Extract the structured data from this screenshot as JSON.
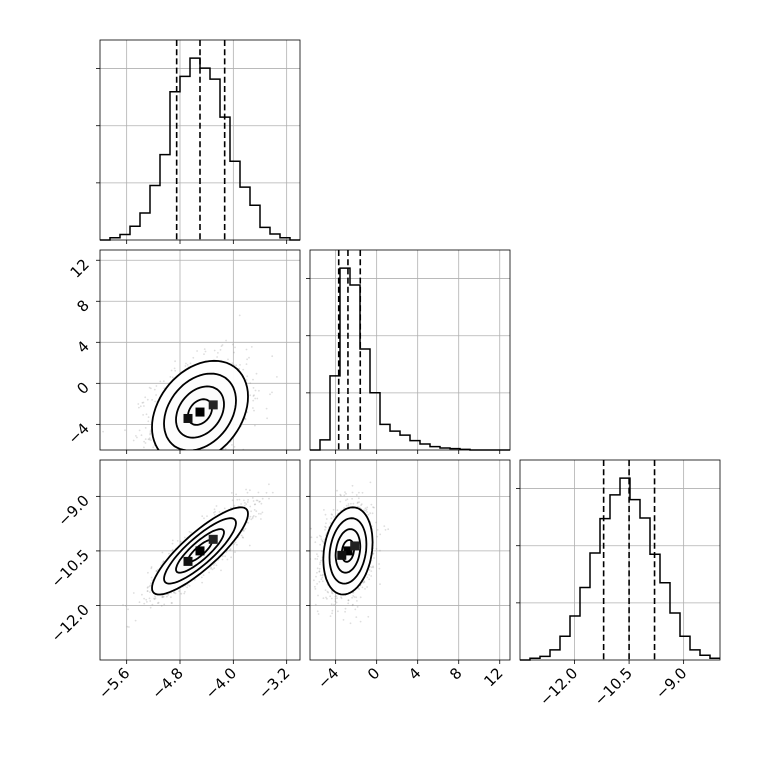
{
  "chart_data": {
    "type": "corner",
    "params": [
      {
        "ticks": [
          -5.6,
          -4.8,
          -4.0,
          -3.2
        ],
        "tick_labels": [
          "−5.6",
          "−4.8",
          "−4.0",
          "−3.2"
        ],
        "range": [
          -6.0,
          -3.0
        ]
      },
      {
        "ticks": [
          -4,
          0,
          4,
          8,
          12
        ],
        "tick_labels": [
          "−4",
          "0",
          "4",
          "8",
          "12"
        ],
        "range": [
          -6.5,
          13.0
        ]
      },
      {
        "ticks": [
          -12.0,
          -10.5,
          -9.0
        ],
        "tick_labels": [
          "−12.0",
          "−10.5",
          "−9.0"
        ],
        "range": [
          -13.5,
          -8.0
        ]
      }
    ],
    "quantiles": [
      [
        -4.85,
        -4.5,
        -4.13
      ],
      [
        -3.7,
        -2.8,
        -1.6
      ],
      [
        -11.2,
        -10.5,
        -9.8
      ]
    ],
    "histograms": [
      {
        "bins": [
          -6.0,
          -5.85,
          -5.7,
          -5.55,
          -5.4,
          -5.25,
          -5.1,
          -4.95,
          -4.8,
          -4.65,
          -4.5,
          -4.35,
          -4.2,
          -4.05,
          -3.9,
          -3.75,
          -3.6,
          -3.45,
          -3.3,
          -3.15,
          -3.0
        ],
        "counts": [
          0,
          4,
          10,
          25,
          49,
          99,
          155,
          269,
          297,
          330,
          312,
          292,
          223,
          143,
          96,
          63,
          23,
          11,
          4,
          0
        ]
      },
      {
        "bins": [
          -6.5,
          -5.525,
          -4.55,
          -3.575,
          -2.6,
          -1.625,
          -0.65,
          0.325,
          1.3,
          2.275,
          3.25,
          4.225,
          5.2,
          6.175,
          7.15,
          8.125,
          9.1,
          10.075,
          11.05,
          12.025,
          13.0
        ],
        "counts": [
          0,
          15,
          110,
          270,
          245,
          150,
          85,
          38,
          28,
          22,
          14,
          9,
          5,
          3,
          2,
          1,
          0,
          0,
          0,
          0
        ]
      },
      {
        "bins": [
          -13.5,
          -13.225,
          -12.95,
          -12.675,
          -12.4,
          -12.125,
          -11.85,
          -11.575,
          -11.3,
          -11.025,
          -10.75,
          -10.475,
          -10.2,
          -9.925,
          -9.65,
          -9.375,
          -9.1,
          -8.825,
          -8.55,
          -8.275,
          -8.0
        ],
        "counts": [
          0,
          3,
          6,
          17,
          40,
          74,
          122,
          180,
          238,
          278,
          306,
          270,
          239,
          178,
          130,
          79,
          40,
          17,
          8,
          3
        ]
      }
    ],
    "pairs": [
      {
        "x": 0,
        "y": 1,
        "mean": [
          -4.5,
          -2.8
        ],
        "sd": [
          0.36,
          2.5
        ],
        "rho": 0.3
      },
      {
        "x": 0,
        "y": 2,
        "mean": [
          -4.5,
          -10.5
        ],
        "sd": [
          0.36,
          0.6
        ],
        "rho": 0.85
      },
      {
        "x": 1,
        "y": 2,
        "mean": [
          -2.8,
          -10.5
        ],
        "sd": [
          1.2,
          0.6
        ],
        "rho": 0.2
      }
    ],
    "grid": true
  }
}
